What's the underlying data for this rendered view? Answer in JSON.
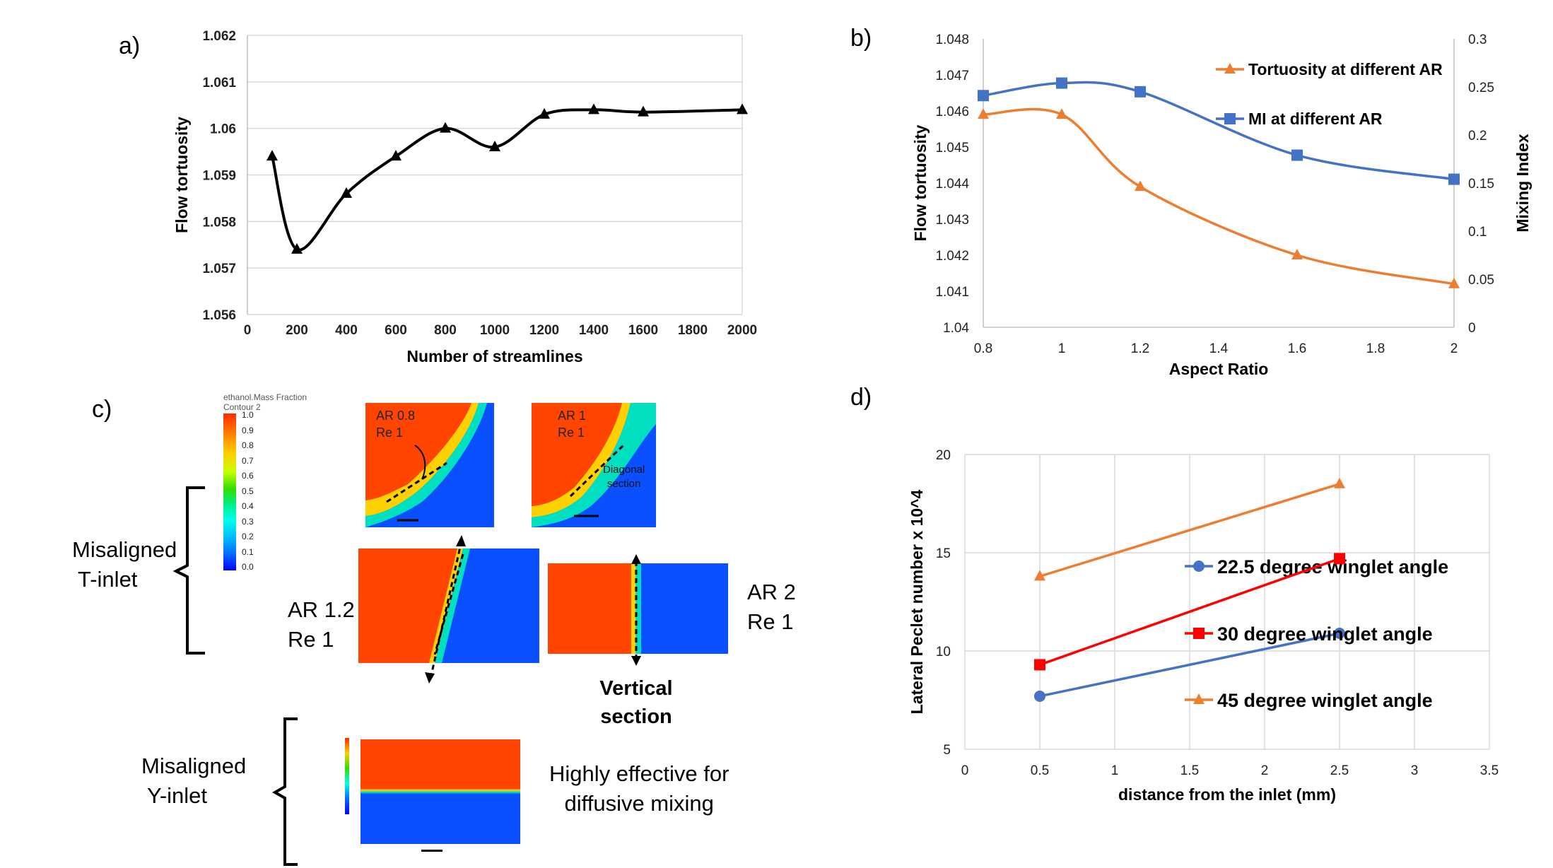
{
  "panel_labels": {
    "a": "a)",
    "b": "b)",
    "c": "c)",
    "d": "d)"
  },
  "colors": {
    "black": "#000000",
    "blue": "#4472c4",
    "orange": "#ed7d31",
    "red": "#ff0000",
    "contour_red": "#ff4500",
    "contour_blue": "#0a50ff"
  },
  "chart_data": [
    {
      "id": "a",
      "type": "line",
      "title": "",
      "xlabel": "Number of streamlines",
      "ylabel": "Flow tortuosity",
      "x_ticks": [
        "0",
        "200",
        "400",
        "600",
        "800",
        "1000",
        "1200",
        "1400",
        "1600",
        "1800",
        "2000"
      ],
      "y_ticks": [
        "1.056",
        "1.057",
        "1.058",
        "1.059",
        "1.06",
        "1.061",
        "1.062"
      ],
      "xlim": [
        0,
        2000
      ],
      "ylim": [
        1.056,
        1.062
      ],
      "grid": "horizontal",
      "series": [
        {
          "x": [
            100,
            200,
            400,
            600,
            800,
            1000,
            1200,
            1400,
            1600,
            2000
          ],
          "y": [
            1.0594,
            1.0574,
            1.0586,
            1.0594,
            1.06,
            1.0596,
            1.0603,
            1.0604,
            1.06035,
            1.0604
          ]
        }
      ]
    },
    {
      "id": "b",
      "type": "line",
      "title": "",
      "xlabel": "Aspect Ratio",
      "ylabel": "Flow tortuosity",
      "y2label": "Mixing Index",
      "x_ticks": [
        "0.8",
        "1",
        "1.2",
        "1.4",
        "1.6",
        "1.8",
        "2"
      ],
      "y_ticks": [
        "1.04",
        "1.041",
        "1.042",
        "1.043",
        "1.044",
        "1.045",
        "1.046",
        "1.047",
        "1.048"
      ],
      "y2_ticks": [
        "0",
        "0.05",
        "0.1",
        "0.15",
        "0.2",
        "0.25",
        "0.3"
      ],
      "xlim": [
        0.8,
        2
      ],
      "ylim": [
        1.04,
        1.048
      ],
      "y2lim": [
        0,
        0.3
      ],
      "grid": "none",
      "legend_position": "top-right",
      "series": [
        {
          "name": "Tortuosity at different AR",
          "axis": "left",
          "x": [
            0.8,
            1,
            1.2,
            1.6,
            2
          ],
          "y": [
            1.0459,
            1.0459,
            1.0439,
            1.042,
            1.0412
          ]
        },
        {
          "name": "MI at different AR",
          "axis": "right",
          "x": [
            0.8,
            1,
            1.2,
            1.6,
            2
          ],
          "y": [
            0.241,
            0.254,
            0.245,
            0.179,
            0.154
          ]
        }
      ]
    },
    {
      "id": "d",
      "type": "line",
      "title": "",
      "xlabel": "distance from the inlet (mm)",
      "ylabel": "Lateral Peclet number x 10^4",
      "x_ticks": [
        "0",
        "0.5",
        "1",
        "1.5",
        "2",
        "2.5",
        "3",
        "3.5"
      ],
      "y_ticks": [
        "5",
        "10",
        "15",
        "20"
      ],
      "xlim": [
        0,
        3.5
      ],
      "ylim": [
        5,
        20
      ],
      "grid": "both",
      "legend_position": "right",
      "series": [
        {
          "name": "22.5 degree winglet angle",
          "x": [
            0.5,
            2.5
          ],
          "y": [
            7.7,
            10.9
          ]
        },
        {
          "name": "30 degree winglet angle",
          "x": [
            0.5,
            2.5
          ],
          "y": [
            9.3,
            14.7
          ]
        },
        {
          "name": "45 degree winglet angle",
          "x": [
            0.5,
            2.5
          ],
          "y": [
            13.8,
            18.5
          ]
        }
      ]
    }
  ],
  "panel_c": {
    "colorbar_title": "ethanol.Mass Fraction",
    "colorbar_subtitle": "Contour 2",
    "colorbar_ticks": [
      "1.0",
      "0.9",
      "0.8",
      "0.7",
      "0.6",
      "0.5",
      "0.4",
      "0.3",
      "0.2",
      "0.1",
      "0.0"
    ],
    "contour1_label": [
      "AR 0.8",
      "Re 1"
    ],
    "contour2_label": [
      "AR 1",
      "Re 1"
    ],
    "diagonal_section": [
      "Diagonal",
      "section"
    ],
    "t_inlet_label": [
      "Misaligned",
      "T-inlet"
    ],
    "y_inlet_label": [
      "Misaligned",
      "Y-inlet"
    ],
    "ar12_label": [
      "AR 1.2",
      "Re 1"
    ],
    "ar2_label": [
      "AR 2",
      "Re 1"
    ],
    "vertical_section": [
      "Vertical",
      "section"
    ],
    "effective_text": [
      "Highly effective for",
      "diffusive mixing"
    ]
  }
}
